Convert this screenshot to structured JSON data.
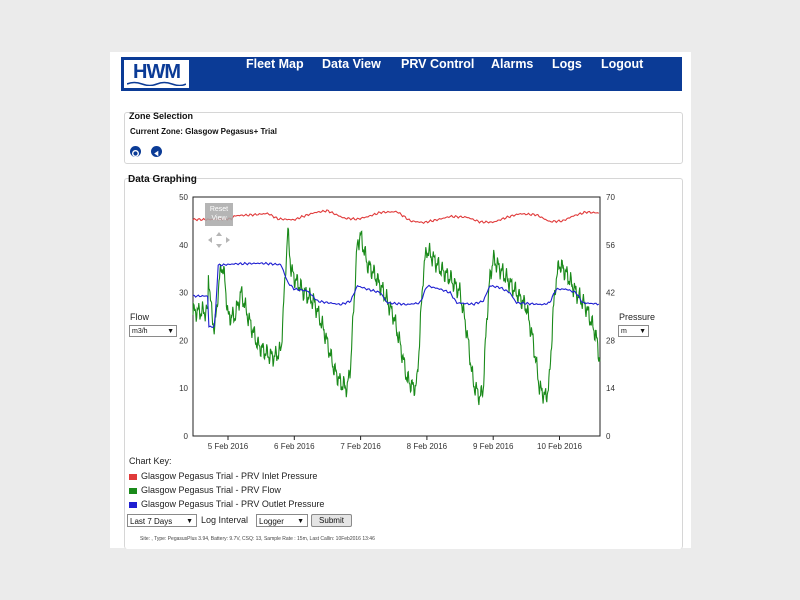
{
  "app": {
    "logo_text": "HWM",
    "nav": [
      "Fleet Map",
      "Data View",
      "PRV Control",
      "Alarms",
      "Logs",
      "Logout"
    ]
  },
  "zone_selection": {
    "title": "Zone Selection",
    "current_zone": "Current Zone: Glasgow Pegasus+ Trial"
  },
  "graph": {
    "title": "Data Graphing",
    "reset_view_label": [
      "Reset",
      "View"
    ],
    "left_axis_label": "Flow",
    "left_unit": "m3/h",
    "right_axis_label": "Pressure",
    "right_unit": "m",
    "key_title": "Chart Key:",
    "colors": {
      "inlet": "#e03a3a",
      "flow": "#1a8a1a",
      "outlet": "#1f1fd1"
    }
  },
  "chart_data": {
    "type": "line",
    "x_ticks": [
      "5 Feb 2016",
      "6 Feb 2016",
      "7 Feb 2016",
      "8 Feb 2016",
      "9 Feb 2016",
      "10 Feb 2016"
    ],
    "x_range": [
      "2016-02-04 17:00",
      "2016-02-10 23:00"
    ],
    "y_left": {
      "label": "Flow",
      "unit": "m3/h",
      "range": [
        0,
        50
      ],
      "ticks": [
        0,
        10,
        20,
        30,
        40,
        50
      ]
    },
    "y_right": {
      "label": "Pressure",
      "unit": "m",
      "range": [
        0,
        70
      ],
      "ticks": [
        0,
        14,
        28,
        42,
        56,
        70
      ]
    },
    "series": [
      {
        "name": "Glasgow Pegasus Trial - PRV Inlet Pressure",
        "axis": "right",
        "points": [
          [
            -0.3,
            63.4
          ],
          [
            0.05,
            63.6
          ],
          [
            0.1,
            64.5
          ],
          [
            0.4,
            64.8
          ],
          [
            0.6,
            65.2
          ],
          [
            0.75,
            63.6
          ],
          [
            1.0,
            63.3
          ],
          [
            1.1,
            64.1
          ],
          [
            1.3,
            65.4
          ],
          [
            1.5,
            66.0
          ],
          [
            1.75,
            63.8
          ],
          [
            1.95,
            63.5
          ],
          [
            2.1,
            64.2
          ],
          [
            2.3,
            65.5
          ],
          [
            2.55,
            65.7
          ],
          [
            2.75,
            63.0
          ],
          [
            2.95,
            62.5
          ],
          [
            3.15,
            63.3
          ],
          [
            3.35,
            64.3
          ],
          [
            3.6,
            64.1
          ],
          [
            3.8,
            62.7
          ],
          [
            4.0,
            62.6
          ],
          [
            4.2,
            64.0
          ],
          [
            4.4,
            65.1
          ],
          [
            4.65,
            64.8
          ],
          [
            4.85,
            62.8
          ],
          [
            5.05,
            63.0
          ],
          [
            5.2,
            64.4
          ],
          [
            5.4,
            65.6
          ],
          [
            5.6,
            65.3
          ],
          [
            5.8,
            63.0
          ],
          [
            5.95,
            63.6
          ],
          [
            6.1,
            63.4
          ]
        ]
      },
      {
        "name": "Glasgow Pegasus Trial - PRV Flow",
        "axis": "left",
        "points": [
          [
            -0.3,
            35
          ],
          [
            -0.25,
            26
          ],
          [
            -0.2,
            22
          ],
          [
            -0.15,
            30
          ],
          [
            -0.1,
            36
          ],
          [
            -0.05,
            33
          ],
          [
            0.0,
            25
          ],
          [
            0.1,
            25
          ],
          [
            0.2,
            30
          ],
          [
            0.3,
            25
          ],
          [
            0.45,
            19
          ],
          [
            0.6,
            17
          ],
          [
            0.7,
            16.5
          ],
          [
            0.8,
            18
          ],
          [
            0.85,
            30
          ],
          [
            0.9,
            43
          ],
          [
            0.95,
            35
          ],
          [
            1.0,
            33
          ],
          [
            1.15,
            30
          ],
          [
            1.3,
            28
          ],
          [
            1.45,
            22
          ],
          [
            1.6,
            14
          ],
          [
            1.7,
            11
          ],
          [
            1.8,
            10
          ],
          [
            1.85,
            15
          ],
          [
            1.9,
            28
          ],
          [
            1.95,
            40
          ],
          [
            2.0,
            42
          ],
          [
            2.1,
            36
          ],
          [
            2.2,
            34
          ],
          [
            2.35,
            30
          ],
          [
            2.5,
            25
          ],
          [
            2.6,
            19
          ],
          [
            2.7,
            12
          ],
          [
            2.8,
            10
          ],
          [
            2.85,
            11
          ],
          [
            2.9,
            23
          ],
          [
            2.95,
            35
          ],
          [
            3.0,
            39
          ],
          [
            3.1,
            37
          ],
          [
            3.2,
            35
          ],
          [
            3.35,
            33
          ],
          [
            3.5,
            30
          ],
          [
            3.6,
            22
          ],
          [
            3.7,
            11
          ],
          [
            3.8,
            8
          ],
          [
            3.85,
            10
          ],
          [
            3.9,
            24
          ],
          [
            3.95,
            33
          ],
          [
            4.0,
            37
          ],
          [
            4.1,
            35
          ],
          [
            4.2,
            33
          ],
          [
            4.35,
            30
          ],
          [
            4.5,
            27
          ],
          [
            4.6,
            20
          ],
          [
            4.7,
            10
          ],
          [
            4.8,
            8
          ],
          [
            4.85,
            12
          ],
          [
            4.9,
            25
          ],
          [
            4.95,
            33
          ],
          [
            5.0,
            36
          ],
          [
            5.1,
            34
          ],
          [
            5.25,
            30
          ],
          [
            5.4,
            27
          ],
          [
            5.55,
            21
          ],
          [
            5.65,
            12
          ],
          [
            5.75,
            8
          ],
          [
            5.8,
            14
          ],
          [
            5.85,
            30
          ],
          [
            5.9,
            42
          ],
          [
            5.95,
            38
          ],
          [
            6.0,
            33
          ],
          [
            6.05,
            28
          ],
          [
            6.1,
            26
          ]
        ]
      },
      {
        "name": "Glasgow Pegasus Trial - PRV Outlet Pressure",
        "axis": "right",
        "points": [
          [
            -0.3,
            32
          ],
          [
            -0.2,
            32
          ],
          [
            -0.15,
            50
          ],
          [
            0.1,
            50.4
          ],
          [
            0.5,
            50.6
          ],
          [
            0.8,
            50.2
          ],
          [
            0.9,
            45
          ],
          [
            1.0,
            43
          ],
          [
            1.2,
            42.5
          ],
          [
            1.35,
            39.5
          ],
          [
            1.7,
            38.5
          ],
          [
            1.85,
            39.5
          ],
          [
            1.95,
            44
          ],
          [
            2.1,
            43
          ],
          [
            2.3,
            42
          ],
          [
            2.4,
            39
          ],
          [
            2.7,
            38.5
          ],
          [
            2.9,
            39
          ],
          [
            3.0,
            44
          ],
          [
            3.2,
            43
          ],
          [
            3.35,
            42
          ],
          [
            3.45,
            39
          ],
          [
            3.7,
            38.6
          ],
          [
            3.85,
            39.5
          ],
          [
            3.95,
            44
          ],
          [
            4.1,
            43.5
          ],
          [
            4.25,
            42
          ],
          [
            4.35,
            39
          ],
          [
            4.75,
            38.5
          ],
          [
            4.85,
            39
          ],
          [
            4.95,
            43
          ],
          [
            5.1,
            43
          ],
          [
            5.25,
            42
          ],
          [
            5.35,
            39
          ],
          [
            5.7,
            38.5
          ],
          [
            5.8,
            39.5
          ],
          [
            5.9,
            47
          ],
          [
            6.0,
            43
          ],
          [
            6.05,
            41.5
          ],
          [
            6.1,
            41
          ]
        ]
      }
    ]
  },
  "controls": {
    "period": "Last 7 Days",
    "log_interval_label": "Log Interval",
    "log_interval": "Logger",
    "submit": "Submit"
  },
  "status_line": "Site: , Type: PegasusPlus 3.94, Battery: 9.7V, CSQ: 13, Sample Rate : 15m, Last Callin: 10Feb2016 13:46"
}
